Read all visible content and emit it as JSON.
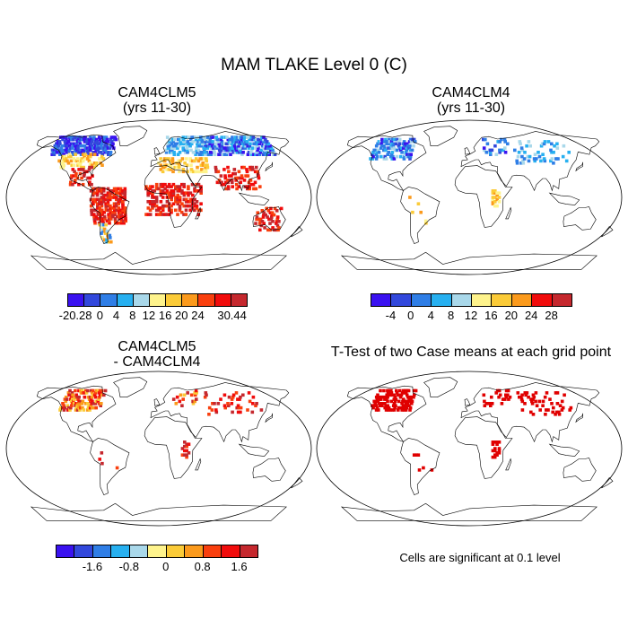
{
  "title": "MAM TLAKE Level 0 (C)",
  "panels": [
    {
      "id": "cam4clm5",
      "title_line1": "CAM4CLM5",
      "title_line2": "(yrs 11-30)",
      "pattern": "full"
    },
    {
      "id": "cam4clm4",
      "title_line1": "CAM4CLM4",
      "title_line2": "(yrs 11-30)",
      "pattern": "sparse"
    },
    {
      "id": "difference",
      "title_line1": "CAM4CLM5",
      "title_line2": "- CAM4CLM4",
      "pattern": "diff"
    },
    {
      "id": "ttest",
      "title_line1": "T-Test of two Case means at each grid point",
      "title_line2": "",
      "pattern": "ttest"
    }
  ],
  "colorbars": {
    "cb1": {
      "colors": [
        "#3a12f0",
        "#3248dc",
        "#2f7ee6",
        "#27b0f0",
        "#a9d8ea",
        "#fef38c",
        "#fbcb38",
        "#fb9a1c",
        "#f93f0e",
        "#f10c0c",
        "#c5282e"
      ],
      "labels": [
        "-20.28",
        "0",
        "4",
        "8",
        "12",
        "16",
        "20",
        "24",
        "30.44"
      ]
    },
    "cb2": {
      "colors": [
        "#3a12f0",
        "#3248dc",
        "#2f7ee6",
        "#27b0f0",
        "#a9d8ea",
        "#fef38c",
        "#fbcb38",
        "#fb9a1c",
        "#f10c0c",
        "#c5282e"
      ],
      "labels": [
        "-4",
        "0",
        "4",
        "8",
        "12",
        "16",
        "20",
        "24",
        "28"
      ]
    },
    "cb3": {
      "colors": [
        "#3a12f0",
        "#3248dc",
        "#2f7ee6",
        "#27b0f0",
        "#a9d8ea",
        "#fef38c",
        "#fbcb38",
        "#fb9a1c",
        "#f93f0e",
        "#f10c0c",
        "#c5282e"
      ],
      "labels": [
        "-1.6",
        "-0.8",
        "0",
        "0.8",
        "1.6"
      ]
    }
  },
  "significance_note": "Cells are significant at 0.1 level"
}
